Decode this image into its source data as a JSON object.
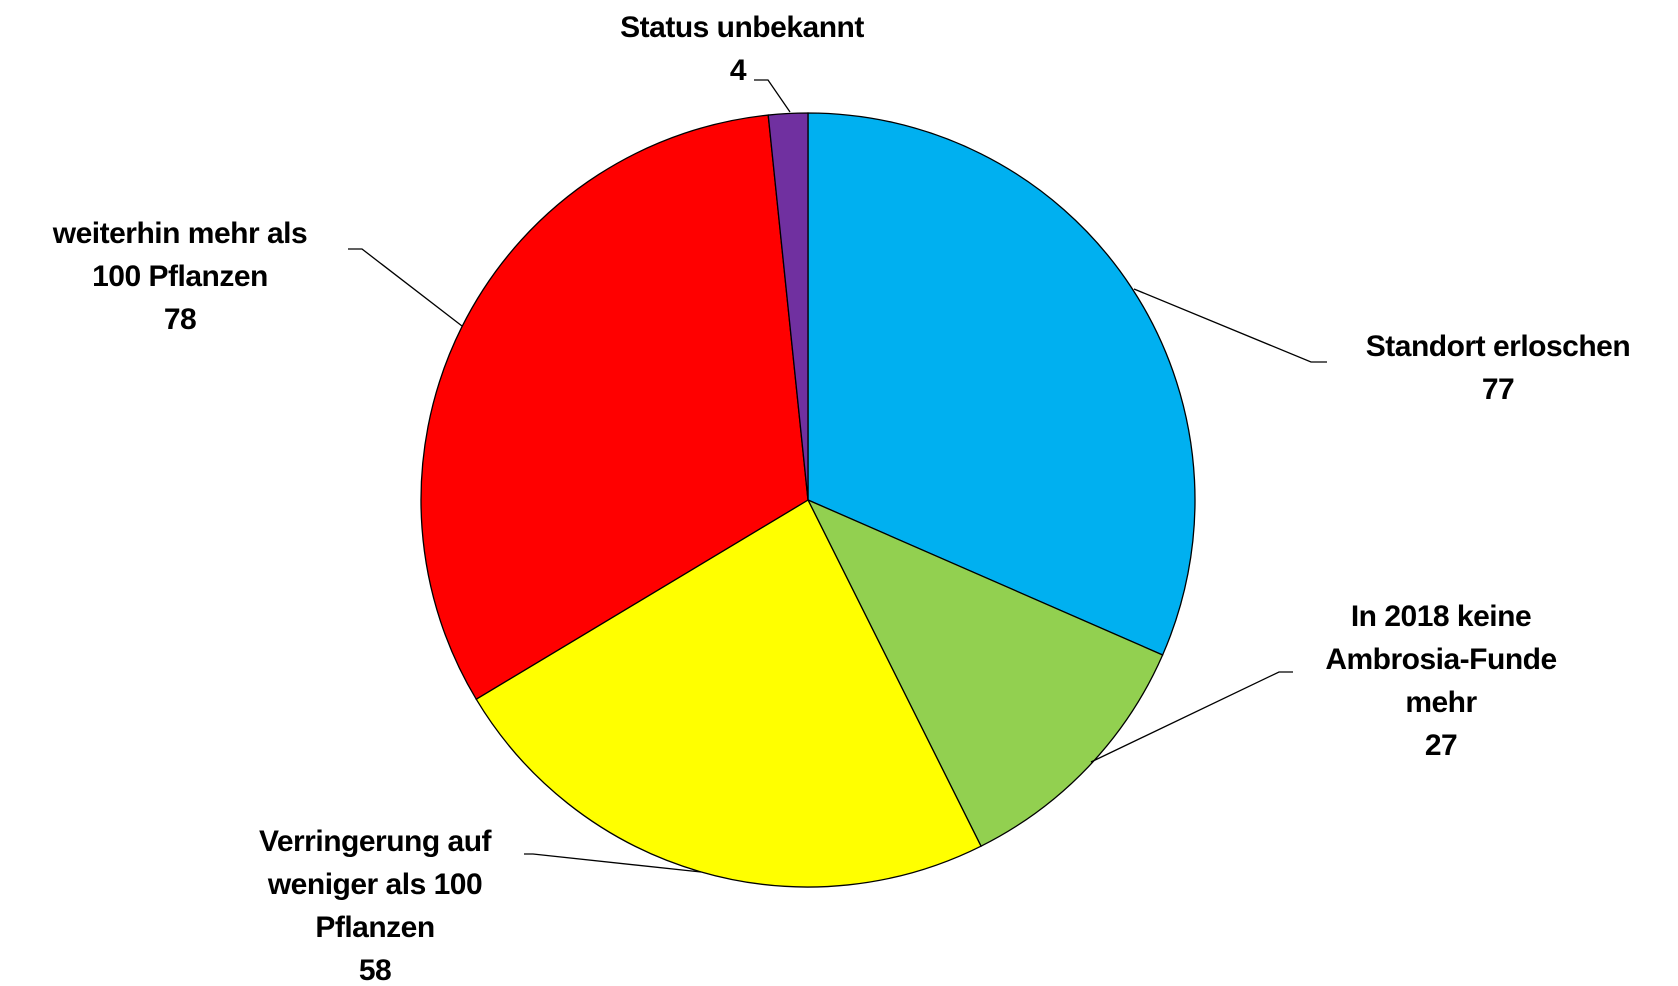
{
  "chart_data": {
    "type": "pie",
    "categories": [
      "Standort erloschen",
      "In 2018 keine Ambrosia-Funde mehr",
      "Verringerung auf weniger als 100 Pflanzen",
      "weiterhin mehr als 100 Pflanzen",
      "Status unbekannt"
    ],
    "values": [
      77,
      27,
      58,
      78,
      4
    ],
    "colors": [
      "#00b0f0",
      "#92d050",
      "#ffff00",
      "#ff0000",
      "#7030a0"
    ]
  }
}
